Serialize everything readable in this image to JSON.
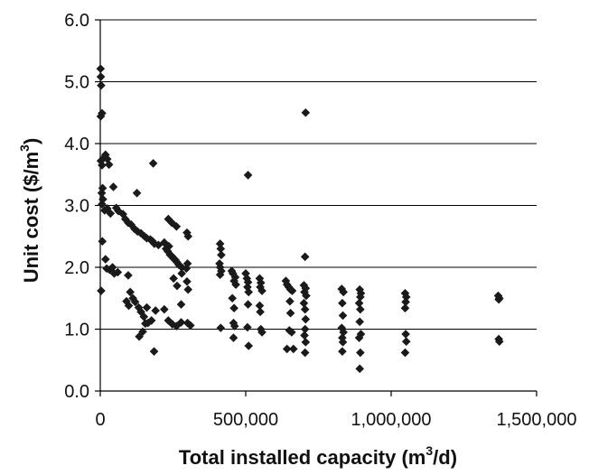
{
  "chart_data": {
    "type": "scatter",
    "title": "",
    "xlabel": "Total installed capacity (m",
    "xlabel_sup": "3",
    "xlabel_tail": "/d)",
    "ylabel": "Unit cost ($/m",
    "ylabel_sup": "3",
    "ylabel_tail": ")",
    "xlim": [
      0,
      1500000
    ],
    "ylim": [
      0.0,
      6.0
    ],
    "x_ticks": [
      0,
      500000,
      1000000,
      1500000
    ],
    "x_tick_labels": [
      "0",
      "500,000",
      "1,000,000",
      "1,500,000"
    ],
    "y_ticks": [
      0.0,
      1.0,
      2.0,
      3.0,
      4.0,
      5.0,
      6.0
    ],
    "y_tick_labels": [
      "0.0",
      "1.0",
      "2.0",
      "3.0",
      "4.0",
      "5.0",
      "6.0"
    ],
    "grid": "horizontal",
    "legend": "none",
    "marker": "diamond",
    "marker_color": "#1a1a1a",
    "series": [
      {
        "points": [
          [
            1000,
            5.21
          ],
          [
            2000,
            5.08
          ],
          [
            3000,
            4.94
          ],
          [
            1500,
            4.44
          ],
          [
            6000,
            4.49
          ],
          [
            2000,
            3.72
          ],
          [
            6000,
            3.65
          ],
          [
            12000,
            3.77
          ],
          [
            18000,
            3.82
          ],
          [
            24000,
            3.75
          ],
          [
            30000,
            3.66
          ],
          [
            8000,
            3.28
          ],
          [
            5000,
            3.2
          ],
          [
            9000,
            3.1
          ],
          [
            6000,
            3.02
          ],
          [
            15000,
            2.92
          ],
          [
            24000,
            2.95
          ],
          [
            35000,
            2.87
          ],
          [
            45000,
            3.3
          ],
          [
            55000,
            2.96
          ],
          [
            62000,
            2.91
          ],
          [
            7000,
            2.42
          ],
          [
            18000,
            2.13
          ],
          [
            22000,
            1.98
          ],
          [
            32000,
            1.96
          ],
          [
            42000,
            2.0
          ],
          [
            48000,
            1.9
          ],
          [
            60000,
            1.92
          ],
          [
            3000,
            1.62
          ],
          [
            78000,
            2.86
          ],
          [
            86000,
            2.78
          ],
          [
            96000,
            2.72
          ],
          [
            106000,
            2.69
          ],
          [
            118000,
            2.62
          ],
          [
            128000,
            2.58
          ],
          [
            140000,
            2.55
          ],
          [
            152000,
            2.5
          ],
          [
            160000,
            2.47
          ],
          [
            172000,
            2.45
          ],
          [
            180000,
            2.42
          ],
          [
            186000,
            2.38
          ],
          [
            200000,
            2.36
          ],
          [
            126000,
            3.2
          ],
          [
            182000,
            3.68
          ],
          [
            96000,
            1.87
          ],
          [
            103000,
            1.6
          ],
          [
            112000,
            1.5
          ],
          [
            120000,
            1.44
          ],
          [
            90000,
            1.45
          ],
          [
            98000,
            1.38
          ],
          [
            132000,
            1.35
          ],
          [
            140000,
            1.28
          ],
          [
            150000,
            1.2
          ],
          [
            160000,
            1.35
          ],
          [
            164000,
            1.1
          ],
          [
            176000,
            1.14
          ],
          [
            190000,
            1.3
          ],
          [
            134000,
            0.88
          ],
          [
            146000,
            0.96
          ],
          [
            155000,
            1.09
          ],
          [
            185000,
            0.64
          ],
          [
            220000,
            1.32
          ],
          [
            234000,
            1.14
          ],
          [
            248000,
            1.08
          ],
          [
            262000,
            1.05
          ],
          [
            278000,
            1.11
          ],
          [
            220000,
            2.4
          ],
          [
            226000,
            2.3
          ],
          [
            232000,
            2.26
          ],
          [
            236000,
            2.34
          ],
          [
            240000,
            2.2
          ],
          [
            246000,
            2.18
          ],
          [
            252000,
            2.14
          ],
          [
            258000,
            2.12
          ],
          [
            264000,
            2.08
          ],
          [
            270000,
            2.04
          ],
          [
            280000,
            2.0
          ],
          [
            296000,
            1.98
          ],
          [
            300000,
            2.06
          ],
          [
            234000,
            2.78
          ],
          [
            246000,
            2.72
          ],
          [
            262000,
            2.66
          ],
          [
            298000,
            2.56
          ],
          [
            302000,
            2.5
          ],
          [
            252000,
            1.82
          ],
          [
            264000,
            1.7
          ],
          [
            280000,
            1.9
          ],
          [
            298000,
            1.77
          ],
          [
            302000,
            1.64
          ],
          [
            278000,
            1.4
          ],
          [
            300000,
            1.1
          ],
          [
            310000,
            1.06
          ],
          [
            412000,
            2.38
          ],
          [
            414000,
            2.3
          ],
          [
            416000,
            2.2
          ],
          [
            410000,
            2.06
          ],
          [
            412000,
            2.0
          ],
          [
            416000,
            1.94
          ],
          [
            412000,
            1.88
          ],
          [
            414000,
            1.02
          ],
          [
            452000,
            1.94
          ],
          [
            456000,
            1.9
          ],
          [
            464000,
            1.84
          ],
          [
            460000,
            1.78
          ],
          [
            466000,
            1.72
          ],
          [
            454000,
            1.5
          ],
          [
            460000,
            1.34
          ],
          [
            458000,
            1.1
          ],
          [
            462000,
            1.05
          ],
          [
            458000,
            0.86
          ],
          [
            500000,
            1.9
          ],
          [
            504000,
            1.82
          ],
          [
            508000,
            1.76
          ],
          [
            506000,
            1.68
          ],
          [
            510000,
            1.6
          ],
          [
            508000,
            1.4
          ],
          [
            506000,
            1.03
          ],
          [
            510000,
            0.73
          ],
          [
            508000,
            3.49
          ],
          [
            548000,
            1.82
          ],
          [
            552000,
            1.75
          ],
          [
            550000,
            1.68
          ],
          [
            556000,
            1.62
          ],
          [
            548000,
            1.38
          ],
          [
            550000,
            1.28
          ],
          [
            552000,
            1.0
          ],
          [
            556000,
            0.95
          ],
          [
            638000,
            1.78
          ],
          [
            642000,
            1.72
          ],
          [
            648000,
            1.68
          ],
          [
            654000,
            1.64
          ],
          [
            660000,
            1.62
          ],
          [
            652000,
            1.45
          ],
          [
            654000,
            1.26
          ],
          [
            650000,
            0.98
          ],
          [
            658000,
            0.95
          ],
          [
            642000,
            0.68
          ],
          [
            664000,
            0.68
          ],
          [
            706000,
            4.5
          ],
          [
            704000,
            2.17
          ],
          [
            700000,
            1.71
          ],
          [
            706000,
            1.66
          ],
          [
            702000,
            1.6
          ],
          [
            708000,
            1.54
          ],
          [
            700000,
            1.42
          ],
          [
            704000,
            1.32
          ],
          [
            706000,
            1.16
          ],
          [
            704000,
            1.0
          ],
          [
            702000,
            0.9
          ],
          [
            706000,
            0.79
          ],
          [
            704000,
            0.62
          ],
          [
            830000,
            1.65
          ],
          [
            836000,
            1.6
          ],
          [
            832000,
            1.42
          ],
          [
            834000,
            1.22
          ],
          [
            830000,
            1.02
          ],
          [
            836000,
            0.95
          ],
          [
            832000,
            0.86
          ],
          [
            834000,
            0.79
          ],
          [
            832000,
            0.64
          ],
          [
            892000,
            1.64
          ],
          [
            896000,
            1.58
          ],
          [
            894000,
            1.52
          ],
          [
            890000,
            1.42
          ],
          [
            894000,
            1.32
          ],
          [
            892000,
            1.12
          ],
          [
            896000,
            0.92
          ],
          [
            890000,
            0.86
          ],
          [
            894000,
            0.62
          ],
          [
            892000,
            0.36
          ],
          [
            1048000,
            1.58
          ],
          [
            1052000,
            1.52
          ],
          [
            1050000,
            1.44
          ],
          [
            1048000,
            1.34
          ],
          [
            1050000,
            0.92
          ],
          [
            1052000,
            0.8
          ],
          [
            1048000,
            0.62
          ],
          [
            1368000,
            1.54
          ],
          [
            1372000,
            1.5
          ],
          [
            1370000,
            1.48
          ],
          [
            1370000,
            0.84
          ],
          [
            1372000,
            0.8
          ]
        ]
      }
    ]
  }
}
